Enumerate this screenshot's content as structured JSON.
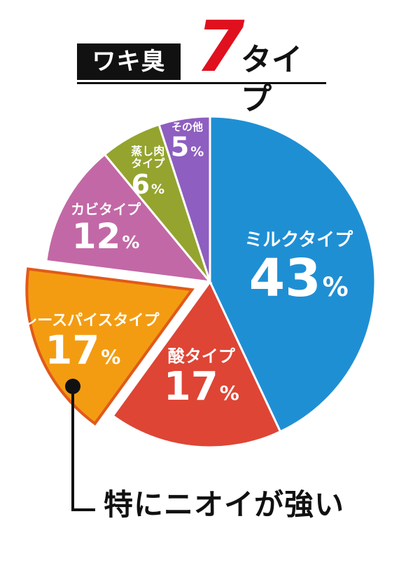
{
  "title": {
    "label": "ワキ臭",
    "number": "7",
    "suffix": "タイプ",
    "number_color": "#e0101e"
  },
  "callout": {
    "text": "特にニオイが強い"
  },
  "chart_data": {
    "type": "pie",
    "start_angle_deg": 0,
    "direction": "clockwise",
    "slices": [
      {
        "label": "ミルクタイプ",
        "value": 43,
        "value_text": "43",
        "color": "#1f8fd4"
      },
      {
        "label": "酸タイプ",
        "value": 17,
        "value_text": "17",
        "color": "#de4535"
      },
      {
        "label": "カレースパイスタイプ",
        "value": 17,
        "value_text": "17",
        "color": "#f39c12",
        "exploded": true,
        "highlighted": true
      },
      {
        "label": "カビタイプ",
        "value": 12,
        "value_text": "12",
        "color": "#c268a6"
      },
      {
        "label": "蒸し肉\nタイプ",
        "value": 6,
        "value_text": "6",
        "color": "#94a42e"
      },
      {
        "label": "その他",
        "value": 5,
        "value_text": "5",
        "color": "#8e5ec0"
      }
    ],
    "percent_sign": "%"
  }
}
